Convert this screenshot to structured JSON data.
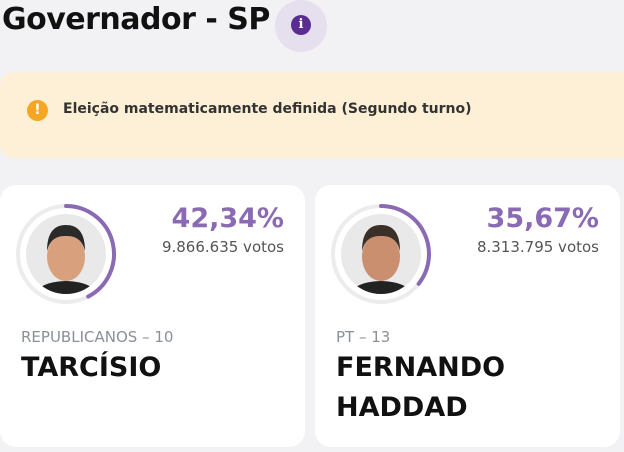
{
  "header": {
    "title": "Governador - SP"
  },
  "banner": {
    "text": "Eleição matematicamente definida (Segundo turno)"
  },
  "candidates": [
    {
      "percent": 42.34,
      "percent_label": "42,34%",
      "votes": "9.866.635 votos",
      "party": "REPUBLICANOS – 10",
      "name": "TARCÍSIO"
    },
    {
      "percent": 35.67,
      "percent_label": "35,67%",
      "votes": "8.313.795 votos",
      "party": "PT – 13",
      "name": "FERNANDO HADDAD"
    }
  ]
}
